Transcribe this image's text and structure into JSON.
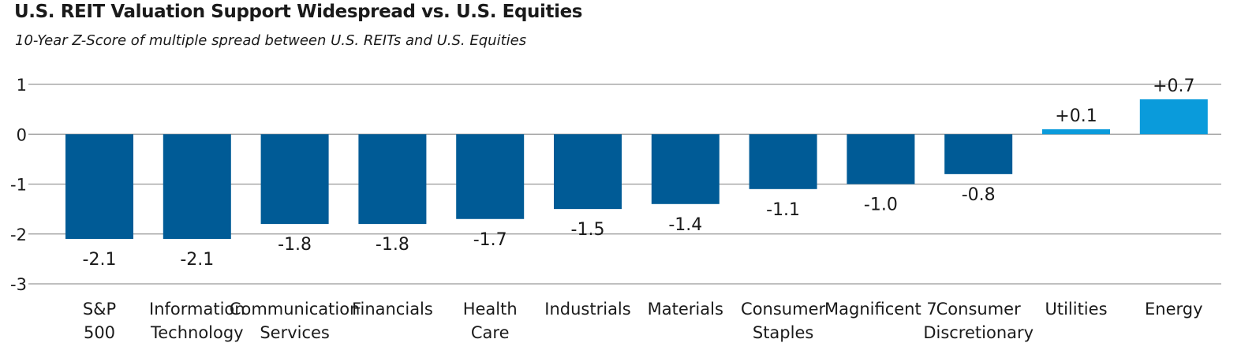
{
  "title": "U.S. REIT Valuation Support Widespread vs. U.S. Equities",
  "subtitle": "10-Year Z-Score of multiple spread between U.S. REITs and U.S. Equities",
  "colors": {
    "negative": "#005b96",
    "positive": "#0a9bdb",
    "grid": "#999999"
  },
  "chart_data": {
    "type": "bar",
    "title": "U.S. REIT Valuation Support Widespread vs. U.S. Equities",
    "subtitle": "10-Year Z-Score of multiple spread between U.S. REITs and U.S. Equities",
    "xlabel": "",
    "ylabel": "",
    "ylim": [
      -3,
      1
    ],
    "yticks": [
      "1",
      "0",
      "-1",
      "-2",
      "-3"
    ],
    "grid": true,
    "categories": [
      [
        "S&P",
        "500"
      ],
      [
        "Information",
        "Technology"
      ],
      [
        "Communication",
        "Services"
      ],
      [
        "Financials"
      ],
      [
        "Health",
        "Care"
      ],
      [
        "Industrials"
      ],
      [
        "Materials"
      ],
      [
        "Consumer",
        "Staples"
      ],
      [
        "Magnificent 7"
      ],
      [
        "Consumer",
        "Discretionary"
      ],
      [
        "Utilities"
      ],
      [
        "Energy"
      ]
    ],
    "values": [
      -2.1,
      -2.1,
      -1.8,
      -1.8,
      -1.7,
      -1.5,
      -1.4,
      -1.1,
      -1.0,
      -0.8,
      0.1,
      0.7
    ],
    "labels": [
      "-2.1",
      "-2.1",
      "-1.8",
      "-1.8",
      "-1.7",
      "-1.5",
      "-1.4",
      "-1.1",
      "-1.0",
      "-0.8",
      "+0.1",
      "+0.7"
    ]
  }
}
